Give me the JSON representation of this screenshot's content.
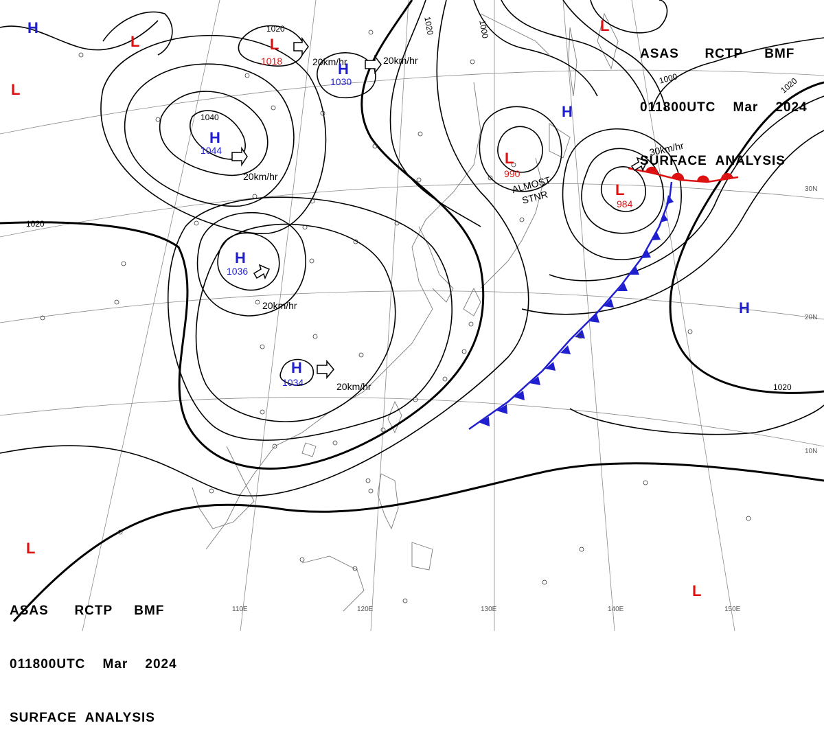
{
  "header": {
    "line1": "ASAS      RCTP     BMF",
    "line2": "011800UTC    Mar    2024",
    "line3": "SURFACE  ANALYSIS"
  },
  "colors": {
    "high": "#1f1fd0",
    "low": "#dd1111",
    "isobar": "#000000",
    "grid": "#8a8a8a",
    "coast": "#7a7a7a"
  },
  "lat_labels": [
    "30N",
    "20N",
    "10N"
  ],
  "lon_labels": [
    "110E",
    "120E",
    "130E",
    "140E",
    "150E"
  ],
  "pressure_centers": [
    {
      "type": "H",
      "value": "1044"
    },
    {
      "type": "H",
      "value": "1030"
    },
    {
      "type": "H",
      "value": "1036"
    },
    {
      "type": "H",
      "value": "1034"
    },
    {
      "type": "L",
      "value": "1018"
    },
    {
      "type": "L",
      "value": "990"
    },
    {
      "type": "L",
      "value": "984"
    },
    {
      "type": "H",
      "value": ""
    },
    {
      "type": "H",
      "value": ""
    },
    {
      "type": "H",
      "value": ""
    },
    {
      "type": "L",
      "value": ""
    },
    {
      "type": "L",
      "value": ""
    },
    {
      "type": "L",
      "value": ""
    },
    {
      "type": "L",
      "value": ""
    },
    {
      "type": "L",
      "value": ""
    }
  ],
  "isobar_labels": [
    "1020",
    "1040",
    "1020",
    "1000",
    "1000",
    "1020",
    "1020",
    "1020"
  ],
  "motion_labels": [
    "20km/hr",
    "20km/hr",
    "20km/hr",
    "20km/hr",
    "20km/hr",
    "30km/hr"
  ],
  "annotation": {
    "line1": "ALMOST",
    "line2": "STNR"
  }
}
